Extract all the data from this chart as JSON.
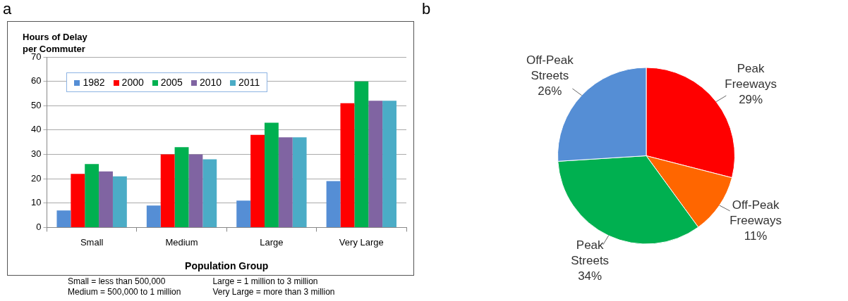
{
  "chart_data": [
    {
      "type": "bar",
      "ylabel": "Hours of Delay\nper Commuter",
      "xlabel": "Population Group",
      "categories": [
        "Small",
        "Medium",
        "Large",
        "Very Large"
      ],
      "series": [
        {
          "name": "1982",
          "color": "#558ed5",
          "values": [
            7,
            9,
            11,
            19
          ]
        },
        {
          "name": "2000",
          "color": "#ff0000",
          "values": [
            22,
            30,
            38,
            51
          ]
        },
        {
          "name": "2005",
          "color": "#00b050",
          "values": [
            26,
            33,
            43,
            60
          ]
        },
        {
          "name": "2010",
          "color": "#8064a2",
          "values": [
            23,
            30,
            37,
            52
          ]
        },
        {
          "name": "2011",
          "color": "#4bacc6",
          "values": [
            21,
            28,
            37,
            52
          ]
        }
      ],
      "ylim": [
        0,
        70
      ],
      "yticks": [
        0,
        10,
        20,
        30,
        40,
        50,
        60,
        70
      ],
      "grid": "y",
      "legend": "top left",
      "annotations": [
        "a",
        "Small = less than 500,000",
        "Medium = 500,000 to 1 million",
        "Large = 1 million to 3 million",
        "Very Large = more than 3 million"
      ]
    },
    {
      "type": "pie",
      "categories": [
        "Peak Freeways",
        "Off-Peak Freeways",
        "Peak Streets",
        "Off-Peak Streets"
      ],
      "values": [
        29,
        11,
        34,
        26
      ],
      "colors": [
        "#ff0000",
        "#ff6600",
        "#00b050",
        "#558ed5"
      ],
      "value_labels": [
        "29%",
        "11%",
        "34%",
        "26%"
      ],
      "legend": false,
      "annotations": [
        "b"
      ]
    }
  ]
}
